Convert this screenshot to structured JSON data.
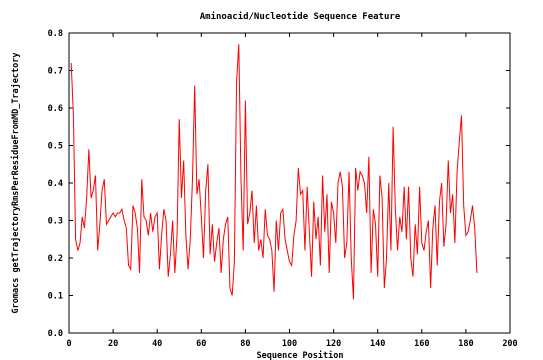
{
  "chart_data": {
    "type": "line",
    "title": "Aminoacid/Nucleotide Sequence Feature",
    "xlabel": "Sequence Position",
    "ylabel": "Gromacs getTrajectoryRmsPerResidueFromMD_Trajectory",
    "xlim": [
      0,
      200
    ],
    "ylim": [
      0,
      0.8
    ],
    "x_ticks": [
      0,
      20,
      40,
      60,
      80,
      100,
      120,
      140,
      160,
      180,
      200
    ],
    "y_ticks": [
      "0.0",
      "0.1",
      "0.2",
      "0.3",
      "0.4",
      "0.5",
      "0.6",
      "0.7",
      "0.8"
    ],
    "grid": false,
    "legend": "none",
    "series": [
      {
        "color": "#ff0000",
        "x_start": 1,
        "x_step": 1,
        "values": [
          0.72,
          0.58,
          0.25,
          0.22,
          0.24,
          0.31,
          0.28,
          0.36,
          0.49,
          0.36,
          0.38,
          0.42,
          0.22,
          0.29,
          0.38,
          0.41,
          0.29,
          0.3,
          0.31,
          0.32,
          0.31,
          0.32,
          0.32,
          0.33,
          0.3,
          0.28,
          0.18,
          0.17,
          0.34,
          0.32,
          0.28,
          0.16,
          0.41,
          0.31,
          0.3,
          0.26,
          0.32,
          0.27,
          0.31,
          0.32,
          0.17,
          0.26,
          0.33,
          0.3,
          0.15,
          0.21,
          0.3,
          0.16,
          0.26,
          0.57,
          0.36,
          0.46,
          0.26,
          0.17,
          0.25,
          0.41,
          0.66,
          0.37,
          0.41,
          0.31,
          0.2,
          0.38,
          0.45,
          0.21,
          0.29,
          0.19,
          0.24,
          0.28,
          0.16,
          0.25,
          0.29,
          0.31,
          0.12,
          0.1,
          0.19,
          0.67,
          0.77,
          0.41,
          0.22,
          0.62,
          0.29,
          0.32,
          0.38,
          0.24,
          0.34,
          0.22,
          0.25,
          0.2,
          0.33,
          0.26,
          0.25,
          0.22,
          0.11,
          0.3,
          0.22,
          0.32,
          0.33,
          0.25,
          0.22,
          0.19,
          0.18,
          0.26,
          0.3,
          0.44,
          0.37,
          0.38,
          0.22,
          0.39,
          0.27,
          0.15,
          0.35,
          0.25,
          0.31,
          0.18,
          0.42,
          0.27,
          0.37,
          0.16,
          0.35,
          0.32,
          0.24,
          0.4,
          0.43,
          0.39,
          0.2,
          0.24,
          0.43,
          0.2,
          0.09,
          0.44,
          0.38,
          0.43,
          0.42,
          0.4,
          0.32,
          0.47,
          0.16,
          0.33,
          0.29,
          0.15,
          0.42,
          0.36,
          0.12,
          0.2,
          0.4,
          0.22,
          0.55,
          0.33,
          0.22,
          0.31,
          0.27,
          0.39,
          0.25,
          0.39,
          0.2,
          0.15,
          0.29,
          0.21,
          0.39,
          0.24,
          0.22,
          0.27,
          0.3,
          0.12,
          0.28,
          0.34,
          0.18,
          0.35,
          0.4,
          0.23,
          0.29,
          0.46,
          0.32,
          0.37,
          0.24,
          0.43,
          0.51,
          0.58,
          0.34,
          0.26,
          0.27,
          0.3,
          0.34,
          0.28,
          0.16
        ]
      }
    ]
  }
}
